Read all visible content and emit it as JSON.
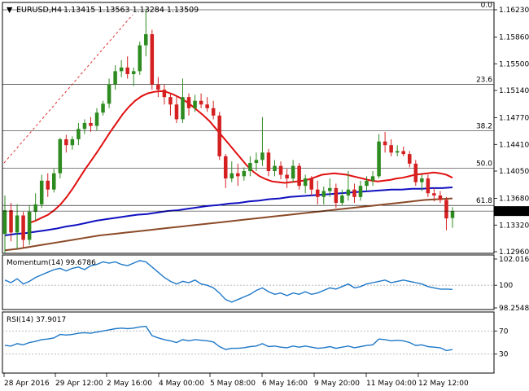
{
  "header": {
    "symbol": "EURUSD,H4",
    "ohlc": "1.13415 1.13563 1.13284 1.13509"
  },
  "price_axis": {
    "ticks": [
      "1.16230",
      "1.15860",
      "1.15500",
      "1.15140",
      "1.14770",
      "1.14410",
      "1.14050",
      "1.13680",
      "1.13320",
      "1.12960"
    ],
    "current_price": "1.13509"
  },
  "fib_levels": [
    {
      "label": "0.0",
      "value": 1.1623
    },
    {
      "label": "23.6",
      "value": 1.1522
    },
    {
      "label": "38.2",
      "value": 1.14595
    },
    {
      "label": "50.0",
      "value": 1.1409
    },
    {
      "label": "61.8",
      "value": 1.13585
    }
  ],
  "momentum": {
    "label": "Momentum(14) 99.6786",
    "ticks": [
      "102.0164",
      "100",
      "98.2548"
    ]
  },
  "rsi": {
    "label": "RSI(14) 37.9017",
    "ticks": [
      "70",
      "30"
    ]
  },
  "time_axis": [
    "28 Apr 2016",
    "29 Apr 12:00",
    "2 May 16:00",
    "4 May 00:00",
    "5 May 08:00",
    "6 May 16:00",
    "9 May 20:00",
    "11 May 04:00",
    "12 May 12:00"
  ],
  "colors": {
    "bull": "#2e8b20",
    "bear": "#d42020",
    "ma_fast": "#e01010",
    "ma_mid": "#1010c0",
    "ma_slow": "#8b4a28",
    "indicator": "#1e78c8",
    "trend": "#e03030"
  },
  "chart_data": {
    "type": "candlestick",
    "symbol": "EURUSD",
    "timeframe": "H4",
    "candles": [
      [
        1.132,
        1.1372,
        1.1294,
        1.1352
      ],
      [
        1.1352,
        1.1362,
        1.131,
        1.1322
      ],
      [
        1.1322,
        1.136,
        1.13,
        1.1345
      ],
      [
        1.1345,
        1.135,
        1.1302,
        1.1312
      ],
      [
        1.1312,
        1.1358,
        1.1305,
        1.135
      ],
      [
        1.135,
        1.1375,
        1.1338,
        1.136
      ],
      [
        1.136,
        1.14,
        1.1355,
        1.1392
      ],
      [
        1.1392,
        1.1402,
        1.137,
        1.138
      ],
      [
        1.138,
        1.1408,
        1.1376,
        1.1402
      ],
      [
        1.1402,
        1.145,
        1.1395,
        1.1448
      ],
      [
        1.1448,
        1.1454,
        1.143,
        1.144
      ],
      [
        1.144,
        1.1452,
        1.1434,
        1.1448
      ],
      [
        1.1448,
        1.147,
        1.144,
        1.1462
      ],
      [
        1.1462,
        1.1475,
        1.1455,
        1.147
      ],
      [
        1.147,
        1.1478,
        1.1458,
        1.1466
      ],
      [
        1.1466,
        1.149,
        1.146,
        1.1484
      ],
      [
        1.1484,
        1.15,
        1.148,
        1.1496
      ],
      [
        1.1496,
        1.153,
        1.149,
        1.1522
      ],
      [
        1.1522,
        1.1548,
        1.1515,
        1.154
      ],
      [
        1.154,
        1.1555,
        1.1532,
        1.1545
      ],
      [
        1.1545,
        1.156,
        1.153,
        1.1536
      ],
      [
        1.1536,
        1.1545,
        1.152,
        1.154
      ],
      [
        1.154,
        1.158,
        1.1535,
        1.1575
      ],
      [
        1.1575,
        1.1623,
        1.156,
        1.159
      ],
      [
        1.159,
        1.1596,
        1.1515,
        1.1522
      ],
      [
        1.1522,
        1.1532,
        1.1505,
        1.1515
      ],
      [
        1.1515,
        1.1522,
        1.1495,
        1.1505
      ],
      [
        1.1505,
        1.151,
        1.148,
        1.1495
      ],
      [
        1.1495,
        1.1505,
        1.147,
        1.1475
      ],
      [
        1.1475,
        1.153,
        1.147,
        1.1505
      ],
      [
        1.1505,
        1.151,
        1.148,
        1.149
      ],
      [
        1.149,
        1.1508,
        1.1485,
        1.15
      ],
      [
        1.15,
        1.151,
        1.149,
        1.1495
      ],
      [
        1.1495,
        1.1505,
        1.1485,
        1.149
      ],
      [
        1.149,
        1.15,
        1.1475,
        1.148
      ],
      [
        1.148,
        1.1485,
        1.142,
        1.1425
      ],
      [
        1.1425,
        1.1428,
        1.1382,
        1.1395
      ],
      [
        1.1395,
        1.1418,
        1.139,
        1.1402
      ],
      [
        1.1402,
        1.1415,
        1.1385,
        1.1398
      ],
      [
        1.1398,
        1.141,
        1.1392,
        1.1405
      ],
      [
        1.1405,
        1.1425,
        1.1398,
        1.1416
      ],
      [
        1.1416,
        1.143,
        1.1405,
        1.142
      ],
      [
        1.142,
        1.1478,
        1.1412,
        1.143
      ],
      [
        1.143,
        1.1435,
        1.1398,
        1.1405
      ],
      [
        1.1405,
        1.142,
        1.1398,
        1.1412
      ],
      [
        1.1412,
        1.1418,
        1.1394,
        1.14
      ],
      [
        1.14,
        1.1408,
        1.1382,
        1.1395
      ],
      [
        1.1395,
        1.142,
        1.139,
        1.1412
      ],
      [
        1.1412,
        1.1416,
        1.138,
        1.1385
      ],
      [
        1.1385,
        1.14,
        1.1375,
        1.1395
      ],
      [
        1.1395,
        1.1398,
        1.1372,
        1.138
      ],
      [
        1.138,
        1.1392,
        1.136,
        1.137
      ],
      [
        1.137,
        1.1384,
        1.136,
        1.1378
      ],
      [
        1.1378,
        1.1395,
        1.137,
        1.1382
      ],
      [
        1.1382,
        1.1388,
        1.1355,
        1.1362
      ],
      [
        1.1362,
        1.138,
        1.1358,
        1.1372
      ],
      [
        1.1372,
        1.1405,
        1.1365,
        1.138
      ],
      [
        1.138,
        1.1388,
        1.1362,
        1.137
      ],
      [
        1.137,
        1.1392,
        1.1365,
        1.1385
      ],
      [
        1.1385,
        1.1398,
        1.1378,
        1.1392
      ],
      [
        1.1392,
        1.1405,
        1.1385,
        1.1398
      ],
      [
        1.1398,
        1.1455,
        1.1395,
        1.1445
      ],
      [
        1.1445,
        1.1458,
        1.143,
        1.144
      ],
      [
        1.144,
        1.1448,
        1.1425,
        1.143
      ],
      [
        1.143,
        1.144,
        1.1425,
        1.1432
      ],
      [
        1.1432,
        1.1438,
        1.1425,
        1.1428
      ],
      [
        1.1428,
        1.1432,
        1.141,
        1.1415
      ],
      [
        1.1415,
        1.142,
        1.1385,
        1.139
      ],
      [
        1.139,
        1.14,
        1.1378,
        1.1395
      ],
      [
        1.1395,
        1.14,
        1.137,
        1.1375
      ],
      [
        1.1375,
        1.1382,
        1.1364,
        1.1372
      ],
      [
        1.1372,
        1.1378,
        1.1362,
        1.1366
      ],
      [
        1.1366,
        1.137,
        1.1325,
        1.1341
      ],
      [
        1.13415,
        1.13563,
        1.13284,
        1.13509
      ]
    ],
    "momentum_values": [
      100.4,
      100.2,
      100.5,
      100.1,
      100.3,
      100.6,
      100.8,
      101.0,
      101.2,
      101.3,
      101.1,
      101.3,
      101.4,
      101.2,
      101.5,
      101.6,
      101.8,
      101.7,
      101.8,
      101.6,
      101.5,
      101.7,
      101.9,
      101.8,
      101.4,
      101.0,
      100.6,
      100.3,
      100.1,
      100.3,
      100.2,
      100.4,
      100.1,
      100.0,
      99.8,
      99.4,
      98.9,
      98.7,
      98.9,
      99.1,
      99.3,
      99.6,
      99.8,
      99.5,
      99.3,
      99.4,
      99.2,
      99.4,
      99.3,
      99.5,
      99.3,
      99.4,
      99.6,
      99.8,
      99.7,
      99.9,
      100.1,
      99.8,
      99.9,
      100.1,
      100.2,
      100.3,
      100.4,
      100.2,
      100.3,
      100.4,
      100.3,
      100.2,
      100.1,
      99.9,
      99.8,
      99.7,
      99.7,
      99.68
    ],
    "rsi_values": [
      45,
      44,
      48,
      46,
      50,
      52,
      55,
      56,
      58,
      64,
      63,
      64,
      66,
      67,
      66,
      68,
      70,
      72,
      74,
      75,
      74,
      75,
      77,
      78,
      62,
      58,
      55,
      53,
      50,
      55,
      53,
      55,
      54,
      53,
      51,
      43,
      38,
      40,
      40,
      41,
      43,
      44,
      48,
      43,
      44,
      42,
      41,
      44,
      42,
      44,
      42,
      40,
      41,
      43,
      40,
      42,
      44,
      41,
      43,
      45,
      46,
      56,
      55,
      53,
      54,
      53,
      50,
      45,
      46,
      43,
      42,
      41,
      36,
      37.9
    ],
    "fast_ma": [
      1.1335,
      1.1338,
      1.1342,
      1.1346,
      1.1352,
      1.136,
      1.137,
      1.1382,
      1.1395,
      1.1408,
      1.142,
      1.1432,
      1.1445,
      1.1458,
      1.147,
      1.1482,
      1.1492,
      1.15,
      1.1506,
      1.151,
      1.1512,
      1.1513,
      1.1512,
      1.1509,
      1.1505,
      1.15,
      1.1494,
      1.1487,
      1.148,
      1.1472,
      1.1462,
      1.1452,
      1.1442,
      1.1432,
      1.1422,
      1.1412,
      1.1404,
      1.1398,
      1.1394,
      1.1391,
      1.139,
      1.1389,
      1.139,
      1.1391,
      1.1392,
      1.1394,
      1.1397,
      1.14,
      1.1401,
      1.1402,
      1.1401,
      1.14,
      1.1398,
      1.1396,
      1.1394,
      1.1392,
      1.1391,
      1.1392,
      1.1393,
      1.1395,
      1.1396,
      1.1398,
      1.14,
      1.1401,
      1.1402,
      1.1403,
      1.1402,
      1.14,
      1.1396
    ],
    "mid_ma": [
      1.1318,
      1.132,
      1.1321,
      1.1323,
      1.1325,
      1.1327,
      1.133,
      1.1332,
      1.1335,
      1.1338,
      1.134,
      1.1342,
      1.1344,
      1.1346,
      1.1347,
      1.1349,
      1.1351,
      1.1352,
      1.1354,
      1.1356,
      1.1358,
      1.1359,
      1.1361,
      1.1362,
      1.1364,
      1.1365,
      1.1367,
      1.1368,
      1.137,
      1.1371,
      1.1372,
      1.1373,
      1.1374,
      1.1375,
      1.1376,
      1.1377,
      1.1378,
      1.1379,
      1.138,
      1.138,
      1.1381,
      1.1381,
      1.1382,
      1.1382,
      1.1383
    ],
    "slow_ma": [
      1.1298,
      1.13,
      1.1303,
      1.1306,
      1.1309,
      1.1312,
      1.1315,
      1.1318,
      1.132,
      1.1322,
      1.1324,
      1.1326,
      1.1328,
      1.133,
      1.1332,
      1.1334,
      1.1336,
      1.1338,
      1.134,
      1.1342,
      1.1344,
      1.1346,
      1.1348,
      1.135,
      1.1352,
      1.1354,
      1.1356,
      1.1358,
      1.136,
      1.1362,
      1.1364,
      1.1366,
      1.1367,
      1.1368
    ],
    "ylim": [
      1.1296,
      1.1623
    ],
    "momentum_ylim": [
      98.2548,
      102.0164
    ],
    "rsi_ylim": [
      0,
      100
    ]
  }
}
